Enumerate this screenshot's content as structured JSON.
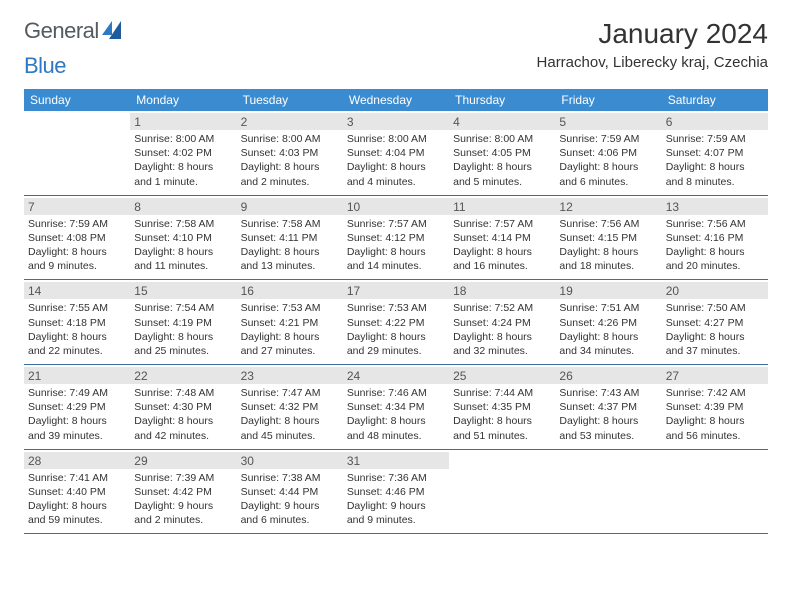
{
  "logo": {
    "word1": "General",
    "word2": "Blue"
  },
  "title": "January 2024",
  "location": "Harrachov, Liberecky kraj, Czechia",
  "colors": {
    "header_bg": "#3b8bd0",
    "header_text": "#ffffff",
    "daynum_bg": "#e6e6e6",
    "week_border": "#3b6fa3",
    "text": "#333333"
  },
  "weekdays": [
    "Sunday",
    "Monday",
    "Tuesday",
    "Wednesday",
    "Thursday",
    "Friday",
    "Saturday"
  ],
  "weeks": [
    [
      null,
      {
        "n": "1",
        "sr": "8:00 AM",
        "ss": "4:02 PM",
        "dl": "8 hours and 1 minute."
      },
      {
        "n": "2",
        "sr": "8:00 AM",
        "ss": "4:03 PM",
        "dl": "8 hours and 2 minutes."
      },
      {
        "n": "3",
        "sr": "8:00 AM",
        "ss": "4:04 PM",
        "dl": "8 hours and 4 minutes."
      },
      {
        "n": "4",
        "sr": "8:00 AM",
        "ss": "4:05 PM",
        "dl": "8 hours and 5 minutes."
      },
      {
        "n": "5",
        "sr": "7:59 AM",
        "ss": "4:06 PM",
        "dl": "8 hours and 6 minutes."
      },
      {
        "n": "6",
        "sr": "7:59 AM",
        "ss": "4:07 PM",
        "dl": "8 hours and 8 minutes."
      }
    ],
    [
      {
        "n": "7",
        "sr": "7:59 AM",
        "ss": "4:08 PM",
        "dl": "8 hours and 9 minutes."
      },
      {
        "n": "8",
        "sr": "7:58 AM",
        "ss": "4:10 PM",
        "dl": "8 hours and 11 minutes."
      },
      {
        "n": "9",
        "sr": "7:58 AM",
        "ss": "4:11 PM",
        "dl": "8 hours and 13 minutes."
      },
      {
        "n": "10",
        "sr": "7:57 AM",
        "ss": "4:12 PM",
        "dl": "8 hours and 14 minutes."
      },
      {
        "n": "11",
        "sr": "7:57 AM",
        "ss": "4:14 PM",
        "dl": "8 hours and 16 minutes."
      },
      {
        "n": "12",
        "sr": "7:56 AM",
        "ss": "4:15 PM",
        "dl": "8 hours and 18 minutes."
      },
      {
        "n": "13",
        "sr": "7:56 AM",
        "ss": "4:16 PM",
        "dl": "8 hours and 20 minutes."
      }
    ],
    [
      {
        "n": "14",
        "sr": "7:55 AM",
        "ss": "4:18 PM",
        "dl": "8 hours and 22 minutes."
      },
      {
        "n": "15",
        "sr": "7:54 AM",
        "ss": "4:19 PM",
        "dl": "8 hours and 25 minutes."
      },
      {
        "n": "16",
        "sr": "7:53 AM",
        "ss": "4:21 PM",
        "dl": "8 hours and 27 minutes."
      },
      {
        "n": "17",
        "sr": "7:53 AM",
        "ss": "4:22 PM",
        "dl": "8 hours and 29 minutes."
      },
      {
        "n": "18",
        "sr": "7:52 AM",
        "ss": "4:24 PM",
        "dl": "8 hours and 32 minutes."
      },
      {
        "n": "19",
        "sr": "7:51 AM",
        "ss": "4:26 PM",
        "dl": "8 hours and 34 minutes."
      },
      {
        "n": "20",
        "sr": "7:50 AM",
        "ss": "4:27 PM",
        "dl": "8 hours and 37 minutes."
      }
    ],
    [
      {
        "n": "21",
        "sr": "7:49 AM",
        "ss": "4:29 PM",
        "dl": "8 hours and 39 minutes."
      },
      {
        "n": "22",
        "sr": "7:48 AM",
        "ss": "4:30 PM",
        "dl": "8 hours and 42 minutes."
      },
      {
        "n": "23",
        "sr": "7:47 AM",
        "ss": "4:32 PM",
        "dl": "8 hours and 45 minutes."
      },
      {
        "n": "24",
        "sr": "7:46 AM",
        "ss": "4:34 PM",
        "dl": "8 hours and 48 minutes."
      },
      {
        "n": "25",
        "sr": "7:44 AM",
        "ss": "4:35 PM",
        "dl": "8 hours and 51 minutes."
      },
      {
        "n": "26",
        "sr": "7:43 AM",
        "ss": "4:37 PM",
        "dl": "8 hours and 53 minutes."
      },
      {
        "n": "27",
        "sr": "7:42 AM",
        "ss": "4:39 PM",
        "dl": "8 hours and 56 minutes."
      }
    ],
    [
      {
        "n": "28",
        "sr": "7:41 AM",
        "ss": "4:40 PM",
        "dl": "8 hours and 59 minutes."
      },
      {
        "n": "29",
        "sr": "7:39 AM",
        "ss": "4:42 PM",
        "dl": "9 hours and 2 minutes."
      },
      {
        "n": "30",
        "sr": "7:38 AM",
        "ss": "4:44 PM",
        "dl": "9 hours and 6 minutes."
      },
      {
        "n": "31",
        "sr": "7:36 AM",
        "ss": "4:46 PM",
        "dl": "9 hours and 9 minutes."
      },
      null,
      null,
      null
    ]
  ],
  "labels": {
    "sunrise": "Sunrise:",
    "sunset": "Sunset:",
    "daylight": "Daylight:"
  }
}
